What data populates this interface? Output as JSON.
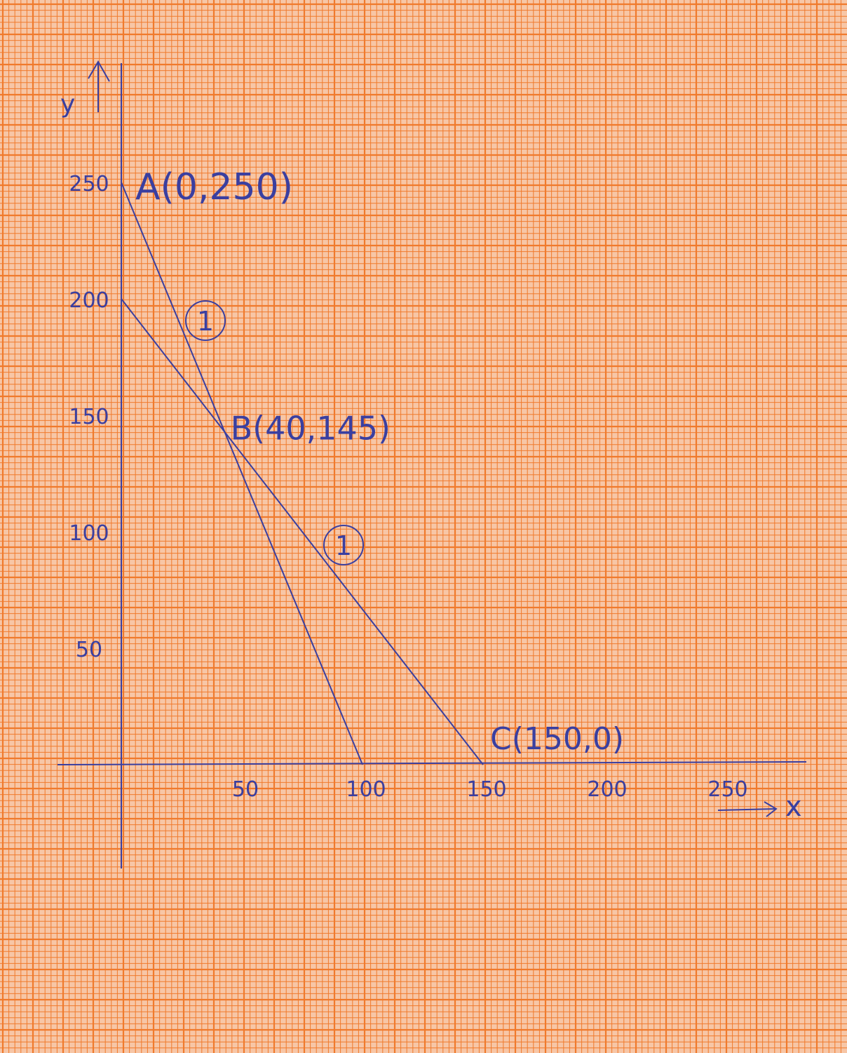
{
  "paper": {
    "background": "#f7c6a6",
    "grid_color": "#f07a2c",
    "ink_color": "#3a3fa0"
  },
  "chart_data": {
    "type": "line",
    "title": "",
    "xlabel": "x",
    "ylabel": "y",
    "xlim": [
      -25,
      280
    ],
    "ylim": [
      -45,
      300
    ],
    "x_ticks": [
      50,
      100,
      150,
      200,
      250
    ],
    "y_ticks": [
      50,
      100,
      150,
      200,
      250
    ],
    "x_tick_labels": [
      "50",
      "100",
      "150",
      "200",
      "250"
    ],
    "y_tick_labels": [
      "50",
      "100",
      "150",
      "200",
      "250"
    ],
    "grid": true,
    "series": [
      {
        "points": [
          [
            0,
            250
          ],
          [
            100,
            0
          ]
        ]
      },
      {
        "points": [
          [
            0,
            200
          ],
          [
            150,
            0
          ]
        ]
      }
    ],
    "annotations": [
      {
        "text": "A(0,250)",
        "x": 0,
        "y": 250
      },
      {
        "text": "B(40,145)",
        "x": 40,
        "y": 145
      },
      {
        "text": "C(150,0)",
        "x": 150,
        "y": 0
      },
      {
        "text": "1",
        "line": 1,
        "circled": true
      },
      {
        "text": "1",
        "line": 2,
        "circled": true
      }
    ]
  }
}
